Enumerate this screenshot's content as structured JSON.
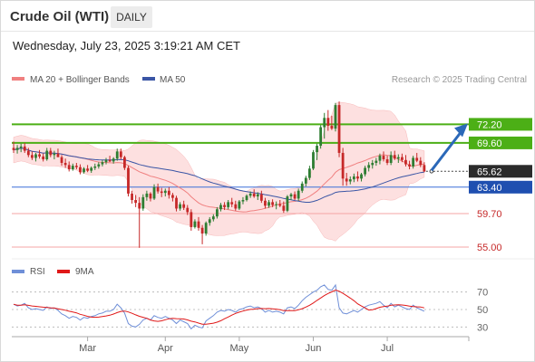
{
  "header": {
    "title": "Crude Oil (WTI)",
    "timeframe": "DAILY",
    "datetime": "Wednesday, July 23, 2025 3:19:21 AM CET"
  },
  "legend": {
    "ma20_label": "MA 20 + Bollinger Bands",
    "ma50_label": "MA 50",
    "credit": "Research © 2025 Trading Central",
    "rsi_label": "RSI",
    "rsi_ma_label": "9MA"
  },
  "colors": {
    "up_candle": "#2e7d32",
    "down_candle": "#c62828",
    "ma20": "#f08080",
    "bollinger_fill": "#fde0e0",
    "ma50": "#3a55a5",
    "resistance": "#4caf16",
    "support_red": "#f5a5a5",
    "pivot_blue": "#3a6fd8",
    "arrow": "#2b68b8",
    "rsi": "#6f8fd8",
    "rsi_ma": "#e01818"
  },
  "levels": [
    {
      "value": "72.20",
      "kind": "resistance"
    },
    {
      "value": "69.60",
      "kind": "resistance"
    },
    {
      "value": "65.62",
      "kind": "last"
    },
    {
      "value": "63.40",
      "kind": "pivot"
    },
    {
      "value": "59.70",
      "kind": "support"
    },
    {
      "value": "55.00",
      "kind": "support"
    }
  ],
  "chart_data": {
    "type": "candlestick",
    "price_range": [
      54.5,
      75.8
    ],
    "x_tick_labels": [
      "Mar",
      "Apr",
      "May",
      "Jun",
      "Jul"
    ],
    "x_tick_index": [
      20,
      41,
      61,
      81,
      101
    ],
    "ohlc": [
      [
        68.9,
        69.8,
        68.2,
        68.6
      ],
      [
        68.6,
        69.3,
        68.1,
        68.9
      ],
      [
        68.9,
        69.5,
        68.3,
        69.1
      ],
      [
        69.1,
        69.6,
        68.2,
        68.5
      ],
      [
        68.5,
        68.9,
        67.6,
        67.9
      ],
      [
        67.9,
        68.4,
        67.2,
        67.5
      ],
      [
        67.5,
        68.2,
        67.0,
        68.0
      ],
      [
        68.0,
        68.6,
        67.4,
        67.7
      ],
      [
        67.7,
        68.1,
        67.0,
        67.3
      ],
      [
        67.3,
        68.9,
        67.1,
        68.5
      ],
      [
        68.5,
        68.9,
        67.6,
        67.9
      ],
      [
        67.9,
        68.5,
        67.3,
        68.1
      ],
      [
        68.1,
        68.8,
        67.7,
        67.6
      ],
      [
        67.6,
        67.9,
        66.4,
        66.8
      ],
      [
        66.8,
        67.4,
        66.1,
        66.5
      ],
      [
        66.5,
        67.0,
        65.6,
        65.9
      ],
      [
        65.9,
        66.7,
        65.7,
        66.4
      ],
      [
        66.4,
        66.8,
        65.9,
        66.2
      ],
      [
        66.2,
        66.6,
        65.2,
        65.5
      ],
      [
        65.5,
        66.2,
        65.3,
        66.0
      ],
      [
        66.0,
        66.5,
        65.5,
        65.7
      ],
      [
        65.7,
        66.3,
        65.4,
        66.1
      ],
      [
        66.1,
        66.7,
        65.8,
        66.3
      ],
      [
        66.3,
        66.9,
        66.0,
        66.6
      ],
      [
        66.6,
        67.2,
        66.3,
        66.9
      ],
      [
        66.9,
        67.5,
        66.6,
        67.2
      ],
      [
        67.2,
        67.8,
        66.9,
        67.0
      ],
      [
        67.0,
        67.6,
        66.7,
        67.4
      ],
      [
        67.4,
        68.8,
        67.1,
        68.4
      ],
      [
        68.4,
        68.8,
        67.3,
        67.6
      ],
      [
        67.6,
        67.8,
        65.8,
        66.1
      ],
      [
        66.1,
        66.4,
        62.1,
        62.5
      ],
      [
        62.5,
        62.9,
        61.1,
        61.6
      ],
      [
        61.6,
        62.3,
        60.6,
        61.2
      ],
      [
        61.2,
        62.0,
        54.9,
        60.4
      ],
      [
        60.4,
        62.4,
        60.1,
        62.0
      ],
      [
        62.0,
        62.9,
        61.5,
        62.5
      ],
      [
        62.5,
        62.7,
        61.4,
        61.8
      ],
      [
        61.8,
        63.8,
        61.6,
        63.4
      ],
      [
        63.4,
        63.9,
        62.5,
        62.8
      ],
      [
        62.8,
        63.3,
        62.0,
        62.6
      ],
      [
        62.6,
        63.2,
        62.1,
        62.9
      ],
      [
        62.9,
        63.4,
        61.8,
        62.3
      ],
      [
        62.3,
        62.6,
        61.4,
        61.9
      ],
      [
        61.9,
        62.2,
        60.0,
        60.4
      ],
      [
        60.4,
        61.3,
        60.1,
        61.0
      ],
      [
        61.0,
        61.5,
        60.2,
        60.5
      ],
      [
        60.5,
        60.9,
        59.5,
        59.9
      ],
      [
        59.9,
        60.3,
        57.3,
        57.8
      ],
      [
        57.8,
        58.9,
        57.6,
        58.6
      ],
      [
        58.6,
        59.2,
        57.3,
        57.7
      ],
      [
        57.7,
        58.1,
        55.4,
        56.9
      ],
      [
        56.9,
        58.6,
        56.6,
        58.4
      ],
      [
        58.4,
        59.2,
        58.0,
        58.9
      ],
      [
        58.9,
        59.6,
        58.6,
        59.3
      ],
      [
        59.3,
        60.6,
        59.0,
        60.3
      ],
      [
        60.3,
        61.2,
        60.0,
        60.9
      ],
      [
        60.9,
        61.3,
        60.2,
        60.6
      ],
      [
        60.6,
        61.6,
        60.3,
        61.3
      ],
      [
        61.3,
        61.9,
        60.6,
        61.0
      ],
      [
        61.0,
        61.5,
        60.1,
        60.4
      ],
      [
        60.4,
        61.6,
        60.2,
        61.4
      ],
      [
        61.4,
        62.0,
        61.0,
        61.6
      ],
      [
        61.6,
        62.4,
        61.4,
        62.2
      ],
      [
        62.2,
        62.8,
        61.9,
        62.5
      ],
      [
        62.5,
        63.1,
        61.9,
        62.1
      ],
      [
        62.1,
        62.7,
        61.6,
        62.4
      ],
      [
        62.4,
        62.9,
        61.2,
        61.5
      ],
      [
        61.5,
        61.9,
        60.4,
        60.8
      ],
      [
        60.8,
        61.6,
        60.5,
        61.3
      ],
      [
        61.3,
        61.7,
        60.6,
        60.9
      ],
      [
        60.9,
        61.4,
        60.3,
        61.0
      ],
      [
        61.0,
        61.6,
        60.6,
        60.8
      ],
      [
        60.8,
        61.4,
        59.8,
        60.1
      ],
      [
        60.1,
        62.3,
        59.9,
        62.1
      ],
      [
        62.1,
        62.6,
        61.6,
        62.4
      ],
      [
        62.4,
        62.8,
        61.6,
        61.8
      ],
      [
        61.8,
        63.2,
        61.5,
        62.9
      ],
      [
        62.9,
        64.2,
        62.6,
        63.9
      ],
      [
        63.9,
        65.0,
        63.5,
        64.7
      ],
      [
        64.7,
        66.4,
        64.4,
        66.0
      ],
      [
        66.0,
        68.6,
        65.8,
        68.3
      ],
      [
        68.3,
        69.5,
        67.2,
        69.2
      ],
      [
        69.2,
        72.1,
        68.8,
        71.8
      ],
      [
        71.8,
        73.8,
        70.2,
        73.1
      ],
      [
        73.1,
        74.2,
        71.3,
        72.0
      ],
      [
        72.0,
        73.4,
        71.4,
        71.6
      ],
      [
        71.6,
        75.2,
        71.2,
        74.9
      ],
      [
        74.9,
        75.4,
        67.6,
        68.2
      ],
      [
        68.2,
        68.9,
        63.6,
        64.6
      ],
      [
        64.6,
        65.4,
        63.6,
        64.2
      ],
      [
        64.2,
        64.9,
        63.8,
        64.5
      ],
      [
        64.5,
        65.3,
        64.1,
        64.9
      ],
      [
        64.9,
        65.6,
        64.2,
        64.6
      ],
      [
        64.6,
        65.4,
        64.2,
        65.2
      ],
      [
        65.2,
        66.4,
        64.9,
        66.1
      ],
      [
        66.1,
        66.9,
        65.6,
        66.5
      ],
      [
        66.5,
        67.2,
        66.0,
        66.8
      ],
      [
        66.8,
        67.5,
        66.4,
        67.1
      ],
      [
        67.1,
        68.1,
        66.6,
        67.8
      ],
      [
        67.8,
        68.4,
        67.0,
        67.3
      ],
      [
        67.3,
        67.8,
        66.5,
        66.8
      ],
      [
        66.8,
        68.4,
        66.5,
        67.9
      ],
      [
        67.9,
        68.5,
        67.2,
        67.4
      ],
      [
        67.4,
        68.0,
        66.8,
        67.6
      ],
      [
        67.6,
        68.1,
        66.9,
        67.2
      ],
      [
        67.2,
        67.9,
        66.3,
        66.6
      ],
      [
        66.6,
        67.1,
        65.9,
        66.3
      ],
      [
        66.3,
        67.8,
        66.0,
        67.5
      ],
      [
        67.5,
        68.2,
        66.9,
        67.1
      ],
      [
        67.1,
        67.6,
        66.2,
        66.5
      ],
      [
        66.5,
        66.9,
        65.5,
        65.6
      ]
    ],
    "projection": {
      "from_price": 65.62,
      "to_price": 72.2
    },
    "rsi": {
      "range": [
        20,
        80
      ],
      "ticks": [
        70,
        50,
        30
      ],
      "values": [
        56,
        54,
        55,
        57,
        52,
        50,
        51,
        50,
        49,
        53,
        51,
        52,
        49,
        45,
        43,
        40,
        42,
        41,
        38,
        41,
        40,
        42,
        43,
        45,
        46,
        48,
        48,
        50,
        56,
        52,
        46,
        34,
        31,
        30,
        33,
        38,
        40,
        38,
        43,
        41,
        40,
        42,
        40,
        38,
        34,
        38,
        36,
        34,
        28,
        32,
        30,
        29,
        37,
        40,
        43,
        47,
        49,
        48,
        50,
        49,
        47,
        50,
        51,
        53,
        54,
        52,
        53,
        51,
        47,
        49,
        47,
        48,
        47,
        45,
        52,
        53,
        51,
        55,
        60,
        64,
        67,
        70,
        72,
        76,
        78,
        73,
        72,
        78,
        52,
        46,
        45,
        47,
        49,
        47,
        50,
        53,
        55,
        56,
        57,
        59,
        55,
        52,
        57,
        53,
        55,
        53,
        51,
        50,
        55,
        52,
        50,
        48
      ]
    }
  }
}
